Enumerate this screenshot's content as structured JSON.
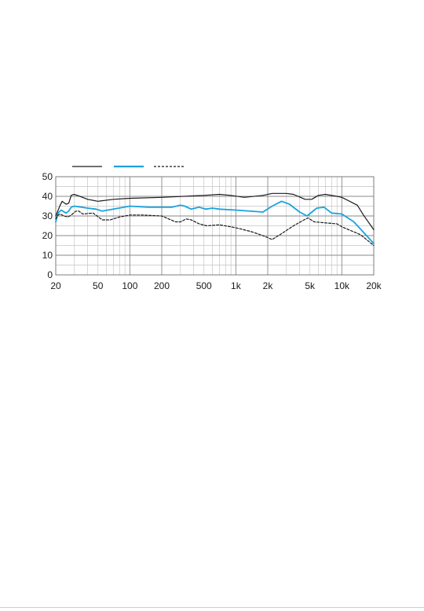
{
  "chart_data": {
    "type": "line",
    "title": "",
    "xlabel": "",
    "ylabel": "",
    "x_scale": "log",
    "xlim": [
      20,
      20000
    ],
    "ylim": [
      0,
      50
    ],
    "grid": true,
    "legend_position": "top-left",
    "x_tick_labels": [
      {
        "value": 20,
        "label": "20"
      },
      {
        "value": 50,
        "label": "50"
      },
      {
        "value": 100,
        "label": "100"
      },
      {
        "value": 200,
        "label": "200"
      },
      {
        "value": 500,
        "label": "500"
      },
      {
        "value": 1000,
        "label": "1k"
      },
      {
        "value": 2000,
        "label": "2k"
      },
      {
        "value": 5000,
        "label": "5k"
      },
      {
        "value": 10000,
        "label": "10k"
      },
      {
        "value": 20000,
        "label": "20k"
      }
    ],
    "y_ticks": [
      0,
      10,
      20,
      30,
      40,
      50
    ],
    "series": [
      {
        "color": "#1a1a1a",
        "dash": "solid",
        "points": [
          [
            20,
            30
          ],
          [
            22,
            35.5
          ],
          [
            23,
            37.5
          ],
          [
            25,
            36
          ],
          [
            26.5,
            36.5
          ],
          [
            28,
            40.5
          ],
          [
            29.5,
            41
          ],
          [
            32,
            40.5
          ],
          [
            40,
            38.5
          ],
          [
            50,
            37.5
          ],
          [
            70,
            38.5
          ],
          [
            100,
            39
          ],
          [
            200,
            39.5
          ],
          [
            500,
            40.5
          ],
          [
            700,
            41
          ],
          [
            900,
            40.5
          ],
          [
            1200,
            39.5
          ],
          [
            1800,
            40.5
          ],
          [
            2200,
            41.5
          ],
          [
            3000,
            41.5
          ],
          [
            3500,
            41
          ],
          [
            4500,
            38.5
          ],
          [
            5200,
            38.5
          ],
          [
            6000,
            40.5
          ],
          [
            7000,
            41
          ],
          [
            9000,
            40
          ],
          [
            10000,
            39.5
          ],
          [
            14000,
            35.5
          ],
          [
            16000,
            30.5
          ],
          [
            20000,
            23
          ]
        ]
      },
      {
        "color": "#1aa3e0",
        "dash": "solid",
        "points": [
          [
            20,
            27
          ],
          [
            21,
            31.5
          ],
          [
            22.5,
            33
          ],
          [
            25,
            31.5
          ],
          [
            26.5,
            32.5
          ],
          [
            28,
            34.5
          ],
          [
            30,
            35
          ],
          [
            35,
            34.5
          ],
          [
            40,
            34
          ],
          [
            48,
            33.5
          ],
          [
            55,
            32.5
          ],
          [
            70,
            33.5
          ],
          [
            100,
            35
          ],
          [
            150,
            34.5
          ],
          [
            250,
            34.5
          ],
          [
            300,
            35.5
          ],
          [
            330,
            35
          ],
          [
            380,
            33.5
          ],
          [
            450,
            34.5
          ],
          [
            520,
            33.5
          ],
          [
            600,
            34
          ],
          [
            700,
            33.5
          ],
          [
            1000,
            33
          ],
          [
            1800,
            32
          ],
          [
            2200,
            35
          ],
          [
            2700,
            37.5
          ],
          [
            3200,
            36
          ],
          [
            4000,
            32
          ],
          [
            4700,
            30
          ],
          [
            5800,
            34
          ],
          [
            6800,
            34.5
          ],
          [
            8000,
            31.5
          ],
          [
            10000,
            31
          ],
          [
            13000,
            27
          ],
          [
            20000,
            16
          ]
        ]
      },
      {
        "color": "#1a1a1a",
        "dash": "dashed",
        "points": [
          [
            20,
            28.5
          ],
          [
            21,
            30.5
          ],
          [
            22,
            31
          ],
          [
            24,
            30
          ],
          [
            26,
            29.5
          ],
          [
            28,
            30.5
          ],
          [
            31,
            32.5
          ],
          [
            33,
            32.5
          ],
          [
            36,
            31
          ],
          [
            45,
            31.5
          ],
          [
            55,
            28
          ],
          [
            65,
            28
          ],
          [
            80,
            29.5
          ],
          [
            100,
            30.5
          ],
          [
            130,
            30.5
          ],
          [
            200,
            30
          ],
          [
            270,
            27
          ],
          [
            300,
            27
          ],
          [
            340,
            28.5
          ],
          [
            380,
            28
          ],
          [
            450,
            26
          ],
          [
            530,
            25
          ],
          [
            700,
            25.5
          ],
          [
            900,
            24.5
          ],
          [
            1100,
            23.5
          ],
          [
            1400,
            22
          ],
          [
            1700,
            20.5
          ],
          [
            2000,
            19
          ],
          [
            2200,
            18
          ],
          [
            2700,
            21
          ],
          [
            3500,
            25
          ],
          [
            4400,
            28
          ],
          [
            4800,
            29
          ],
          [
            5500,
            27
          ],
          [
            7000,
            26.5
          ],
          [
            9000,
            26
          ],
          [
            10000,
            24.5
          ],
          [
            15000,
            20.5
          ],
          [
            20000,
            15
          ]
        ]
      }
    ]
  }
}
